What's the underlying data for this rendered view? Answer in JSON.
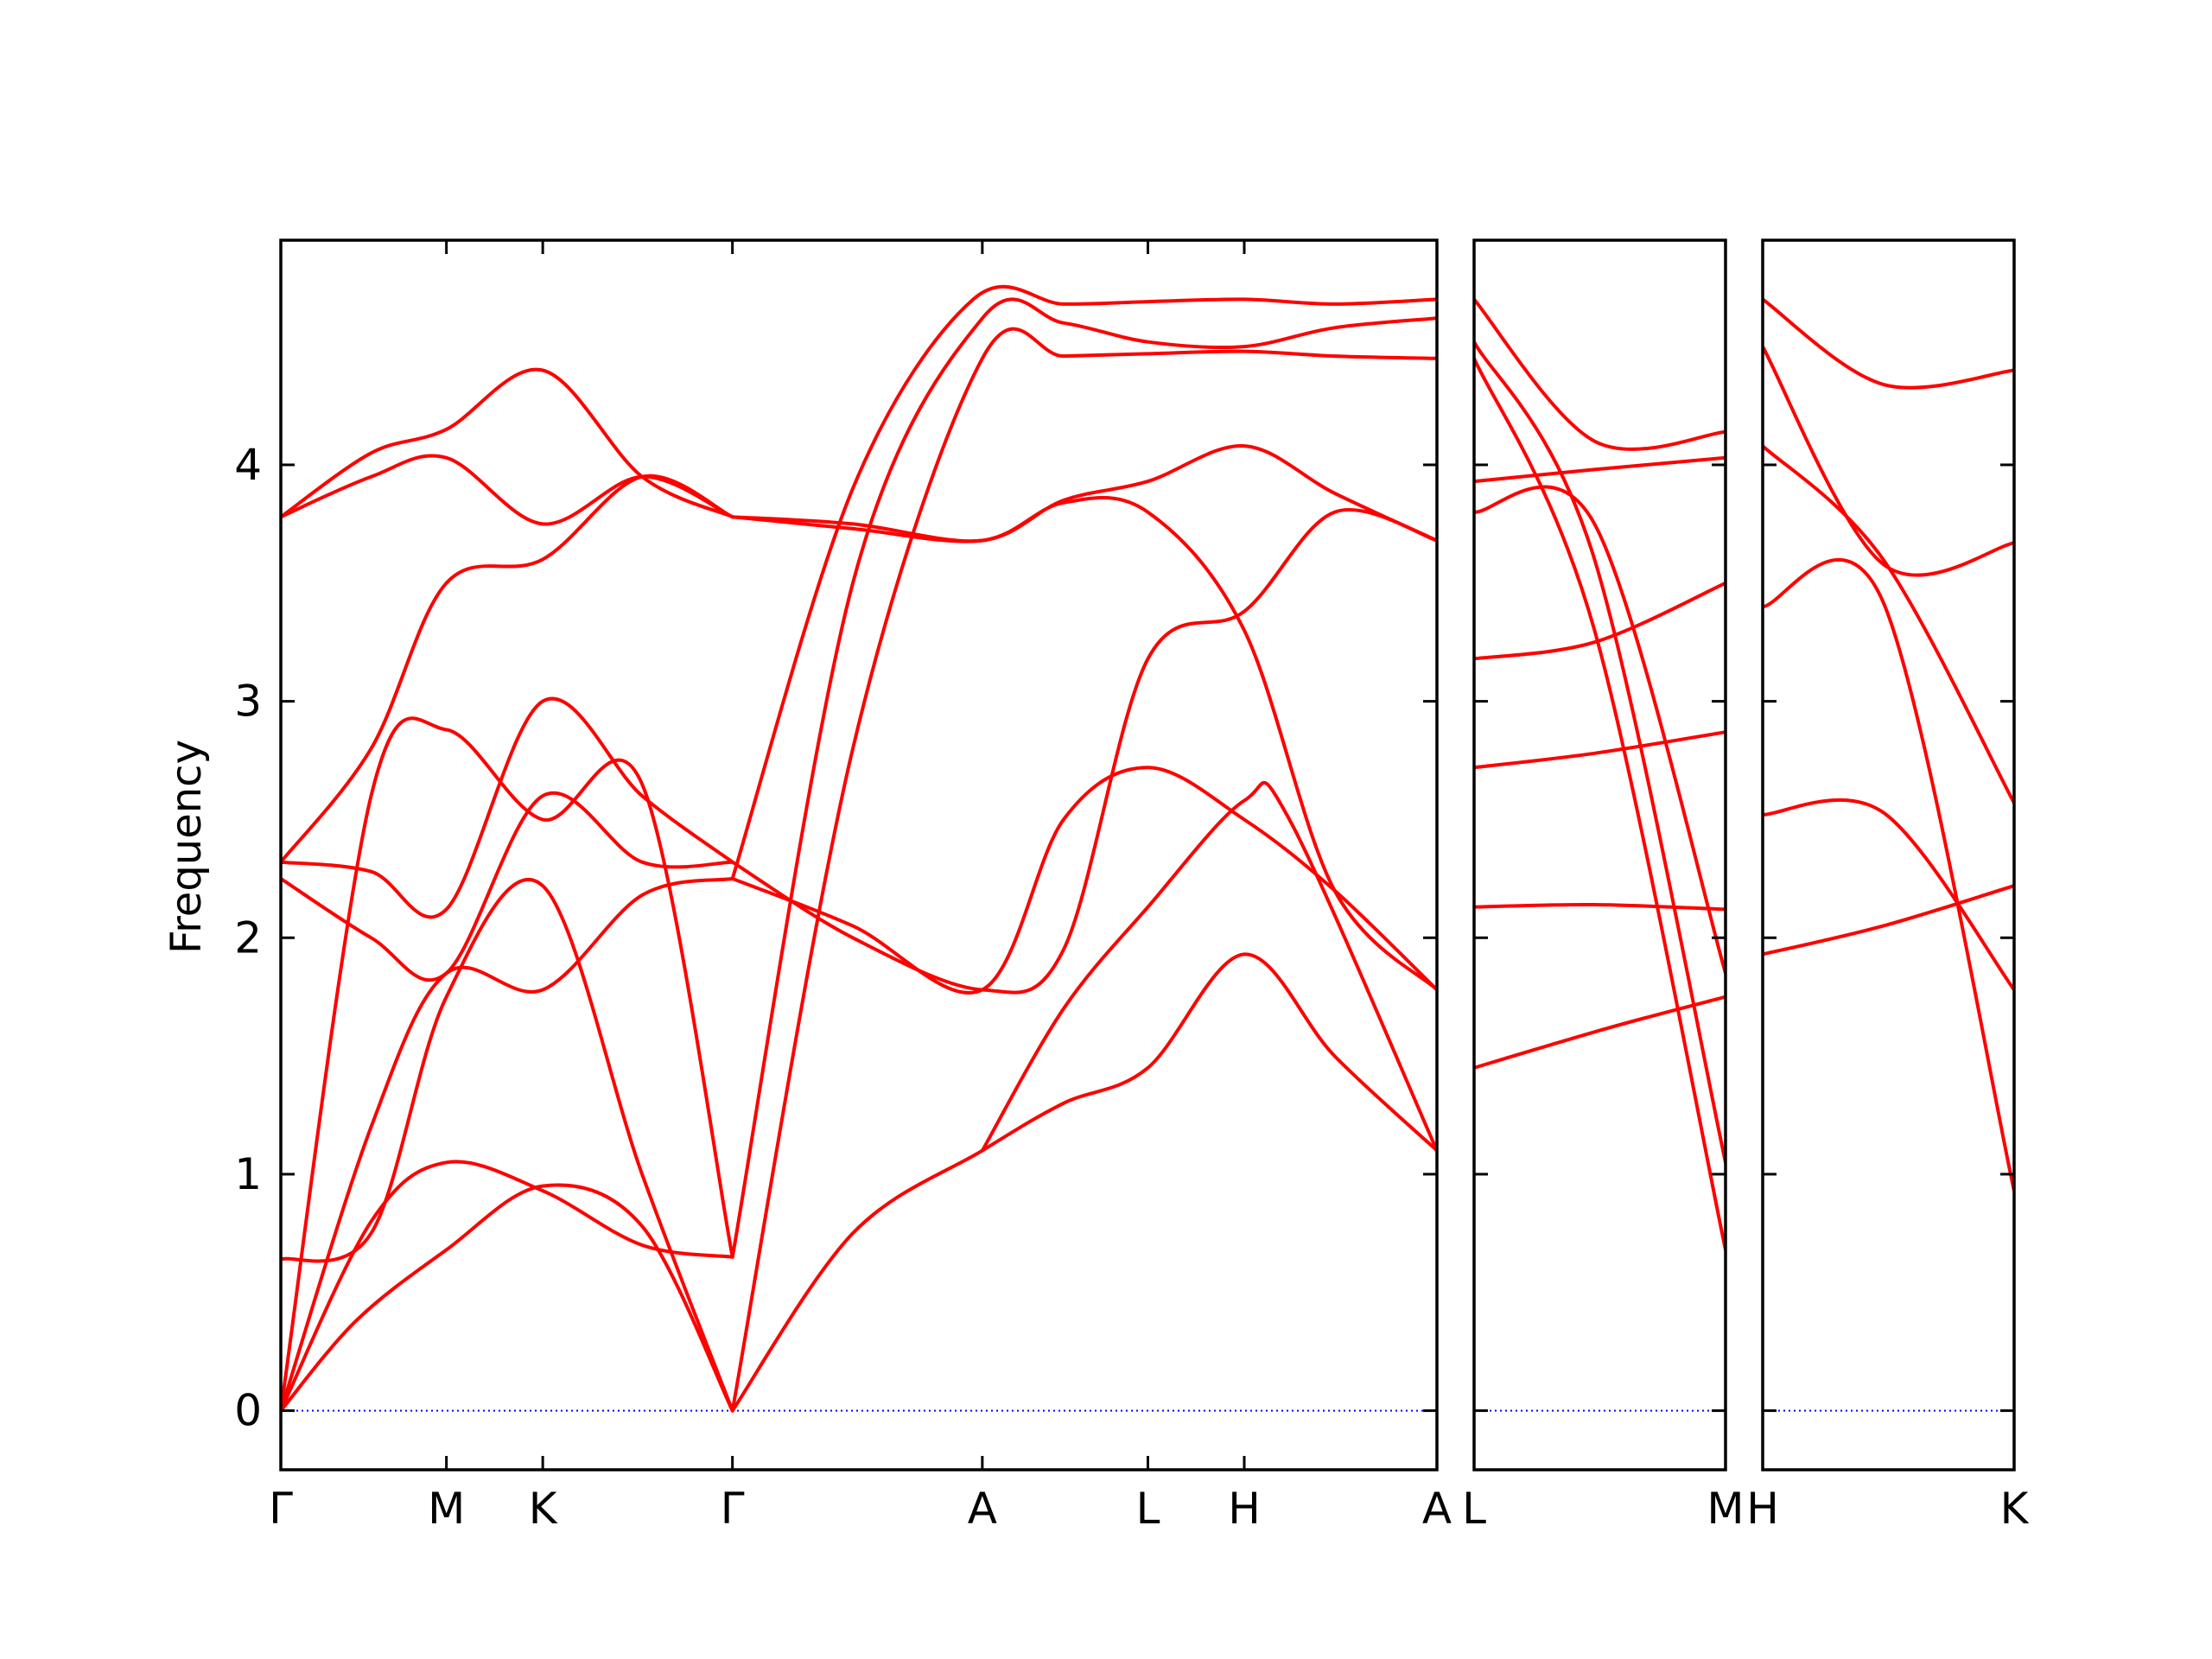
{
  "chart_data": {
    "type": "line",
    "ylabel": "Frequency",
    "ylim": [
      -0.25,
      4.95
    ],
    "yticks": [
      0,
      1,
      2,
      3,
      4
    ],
    "grid": false,
    "line_color": "#ff0000",
    "zero_line_color": "#0000ff",
    "frame_color": "#000000",
    "panels": [
      {
        "xrange": [
          0,
          7.68
        ],
        "ticks": [
          {
            "x": 0,
            "label": "Γ"
          },
          {
            "x": 1.1,
            "label": "M"
          },
          {
            "x": 1.74,
            "label": "K"
          },
          {
            "x": 3.0,
            "label": "Γ"
          },
          {
            "x": 4.66,
            "label": "A"
          },
          {
            "x": 5.76,
            "label": "L"
          },
          {
            "x": 6.4,
            "label": "H"
          },
          {
            "x": 7.68,
            "label": "A"
          }
        ],
        "series": [
          {
            "name": "",
            "points": [
              [
                0,
                0
              ],
              [
                0.5,
                0.38
              ],
              [
                1.1,
                0.68
              ],
              [
                1.74,
                0.95
              ],
              [
                2.4,
                0.78
              ],
              [
                3.0,
                0
              ]
            ]
          },
          {
            "name": "",
            "points": [
              [
                0,
                0
              ],
              [
                0.6,
                0.8
              ],
              [
                1.1,
                1.05
              ],
              [
                1.74,
                0.93
              ],
              [
                2.4,
                0.7
              ],
              [
                3.0,
                0.65
              ]
            ]
          },
          {
            "name": "",
            "points": [
              [
                0,
                0.64
              ],
              [
                0.6,
                0.75
              ],
              [
                1.1,
                1.75
              ],
              [
                1.74,
                2.22
              ],
              [
                2.4,
                1.0
              ],
              [
                3.0,
                0
              ]
            ]
          },
          {
            "name": "",
            "points": [
              [
                0,
                0
              ],
              [
                0.6,
                1.2
              ],
              [
                1.1,
                1.85
              ],
              [
                1.74,
                1.78
              ],
              [
                2.4,
                2.18
              ],
              [
                3.0,
                2.25
              ]
            ]
          },
          {
            "name": "",
            "points": [
              [
                0,
                2.25
              ],
              [
                0.6,
                2.0
              ],
              [
                1.1,
                1.85
              ],
              [
                1.74,
                2.6
              ],
              [
                2.4,
                2.32
              ],
              [
                3.0,
                2.32
              ]
            ]
          },
          {
            "name": "",
            "points": [
              [
                0,
                0
              ],
              [
                0.6,
                2.6
              ],
              [
                1.1,
                2.88
              ],
              [
                1.74,
                2.5
              ],
              [
                2.4,
                2.65
              ],
              [
                3.0,
                0.65
              ]
            ]
          },
          {
            "name": "",
            "points": [
              [
                0,
                2.32
              ],
              [
                0.6,
                2.8
              ],
              [
                1.1,
                3.5
              ],
              [
                1.74,
                3.6
              ],
              [
                2.4,
                3.95
              ],
              [
                3.0,
                3.78
              ]
            ]
          },
          {
            "name": "",
            "points": [
              [
                0,
                2.32
              ],
              [
                0.6,
                2.28
              ],
              [
                1.1,
                2.12
              ],
              [
                1.74,
                3.0
              ],
              [
                2.4,
                2.6
              ],
              [
                3.0,
                2.32
              ]
            ]
          },
          {
            "name": "",
            "points": [
              [
                0,
                3.78
              ],
              [
                0.6,
                3.95
              ],
              [
                1.1,
                4.03
              ],
              [
                1.74,
                3.75
              ],
              [
                2.4,
                3.95
              ],
              [
                3.0,
                3.78
              ]
            ]
          },
          {
            "name": "",
            "points": [
              [
                0,
                3.78
              ],
              [
                0.6,
                4.05
              ],
              [
                1.1,
                4.15
              ],
              [
                1.74,
                4.4
              ],
              [
                2.4,
                3.95
              ],
              [
                3.0,
                3.78
              ]
            ]
          },
          {
            "name": "",
            "points": [
              [
                3.0,
                0
              ],
              [
                3.8,
                0.75
              ],
              [
                4.66,
                1.1
              ],
              [
                5.2,
                1.3
              ],
              [
                5.76,
                1.45
              ],
              [
                6.4,
                1.93
              ],
              [
                7.0,
                1.5
              ],
              [
                7.68,
                1.1
              ]
            ]
          },
          {
            "name": "",
            "points": [
              [
                3.0,
                0
              ],
              [
                3.8,
                2.8
              ],
              [
                4.66,
                4.45
              ],
              [
                5.2,
                4.46
              ],
              [
                5.76,
                4.47
              ],
              [
                6.4,
                4.48
              ],
              [
                7.0,
                4.46
              ],
              [
                7.68,
                4.45
              ]
            ]
          },
          {
            "name": "",
            "points": [
              [
                3.0,
                0.65
              ],
              [
                3.8,
                3.5
              ],
              [
                4.66,
                4.62
              ],
              [
                5.2,
                4.6
              ],
              [
                5.76,
                4.52
              ],
              [
                6.4,
                4.5
              ],
              [
                7.0,
                4.58
              ],
              [
                7.68,
                4.62
              ]
            ]
          },
          {
            "name": "",
            "points": [
              [
                3.0,
                2.25
              ],
              [
                3.8,
                3.9
              ],
              [
                4.6,
                4.7
              ],
              [
                5.2,
                4.68
              ],
              [
                5.76,
                4.69
              ],
              [
                6.4,
                4.7
              ],
              [
                7.0,
                4.68
              ],
              [
                7.68,
                4.7
              ]
            ]
          },
          {
            "name": "",
            "points": [
              [
                3.0,
                3.78
              ],
              [
                3.8,
                3.75
              ],
              [
                4.66,
                3.68
              ],
              [
                5.2,
                3.85
              ],
              [
                5.76,
                3.93
              ],
              [
                6.4,
                4.08
              ],
              [
                7.0,
                3.88
              ],
              [
                7.68,
                3.68
              ]
            ]
          },
          {
            "name": "",
            "points": [
              [
                3.0,
                3.78
              ],
              [
                3.8,
                3.73
              ],
              [
                4.66,
                3.68
              ],
              [
                5.2,
                3.84
              ],
              [
                5.76,
                3.8
              ],
              [
                6.4,
                3.3
              ],
              [
                7.0,
                2.2
              ],
              [
                7.68,
                1.78
              ]
            ]
          },
          {
            "name": "",
            "points": [
              [
                3.0,
                2.32
              ],
              [
                3.8,
                2.0
              ],
              [
                4.66,
                1.78
              ],
              [
                5.2,
                1.95
              ],
              [
                5.76,
                3.18
              ],
              [
                6.4,
                3.38
              ],
              [
                7.0,
                3.8
              ],
              [
                7.68,
                3.68
              ]
            ]
          },
          {
            "name": "",
            "points": [
              [
                3.0,
                2.25
              ],
              [
                3.8,
                2.05
              ],
              [
                4.66,
                1.78
              ],
              [
                5.2,
                2.5
              ],
              [
                5.76,
                2.72
              ],
              [
                6.4,
                2.5
              ],
              [
                7.0,
                2.2
              ],
              [
                7.68,
                1.78
              ]
            ]
          },
          {
            "name": "",
            "points": [
              [
                4.66,
                1.1
              ],
              [
                5.2,
                1.7
              ],
              [
                5.76,
                2.13
              ],
              [
                6.4,
                2.58
              ],
              [
                6.7,
                2.5
              ],
              [
                7.68,
                1.1
              ]
            ]
          }
        ]
      },
      {
        "xrange": [
          0,
          1.67
        ],
        "ticks": [
          {
            "x": 0,
            "label": "L"
          },
          {
            "x": 1.67,
            "label": "M"
          }
        ],
        "series": [
          {
            "name": "",
            "points": [
              [
                0,
                1.45
              ],
              [
                0.9,
                1.62
              ],
              [
                1.67,
                1.75
              ]
            ]
          },
          {
            "name": "",
            "points": [
              [
                0,
                2.13
              ],
              [
                0.8,
                2.14
              ],
              [
                1.67,
                2.12
              ]
            ]
          },
          {
            "name": "",
            "points": [
              [
                0,
                2.72
              ],
              [
                0.8,
                2.78
              ],
              [
                1.67,
                2.87
              ]
            ]
          },
          {
            "name": "",
            "points": [
              [
                0,
                3.18
              ],
              [
                0.8,
                3.25
              ],
              [
                1.67,
                3.5
              ]
            ]
          },
          {
            "name": "",
            "points": [
              [
                0,
                3.8
              ],
              [
                0.8,
                3.75
              ],
              [
                1.67,
                1.85
              ]
            ]
          },
          {
            "name": "",
            "points": [
              [
                0,
                3.93
              ],
              [
                0.8,
                3.98
              ],
              [
                1.67,
                4.03
              ]
            ]
          },
          {
            "name": "",
            "points": [
              [
                0,
                4.45
              ],
              [
                0.8,
                3.3
              ],
              [
                1.67,
                0.68
              ]
            ]
          },
          {
            "name": "",
            "points": [
              [
                0,
                4.52
              ],
              [
                0.8,
                3.6
              ],
              [
                1.67,
                1.05
              ]
            ]
          },
          {
            "name": "",
            "points": [
              [
                0,
                4.7
              ],
              [
                0.8,
                4.1
              ],
              [
                1.67,
                4.14
              ]
            ]
          }
        ]
      },
      {
        "xrange": [
          0,
          1.67
        ],
        "ticks": [
          {
            "x": 0,
            "label": "H"
          },
          {
            "x": 1.67,
            "label": "K"
          }
        ],
        "series": [
          {
            "name": "",
            "points": [
              [
                0,
                1.93
              ],
              [
                0.8,
                2.05
              ],
              [
                1.67,
                2.22
              ]
            ]
          },
          {
            "name": "",
            "points": [
              [
                0,
                2.52
              ],
              [
                0.8,
                2.53
              ],
              [
                1.67,
                1.78
              ]
            ]
          },
          {
            "name": "",
            "points": [
              [
                0,
                3.4
              ],
              [
                0.8,
                3.42
              ],
              [
                1.67,
                0.93
              ]
            ]
          },
          {
            "name": "",
            "points": [
              [
                0,
                4.08
              ],
              [
                0.8,
                3.6
              ],
              [
                1.67,
                2.57
              ]
            ]
          },
          {
            "name": "",
            "points": [
              [
                0,
                4.5
              ],
              [
                0.8,
                3.58
              ],
              [
                1.67,
                3.67
              ]
            ]
          },
          {
            "name": "",
            "points": [
              [
                0,
                4.7
              ],
              [
                0.8,
                4.34
              ],
              [
                1.67,
                4.4
              ]
            ]
          }
        ]
      }
    ]
  }
}
